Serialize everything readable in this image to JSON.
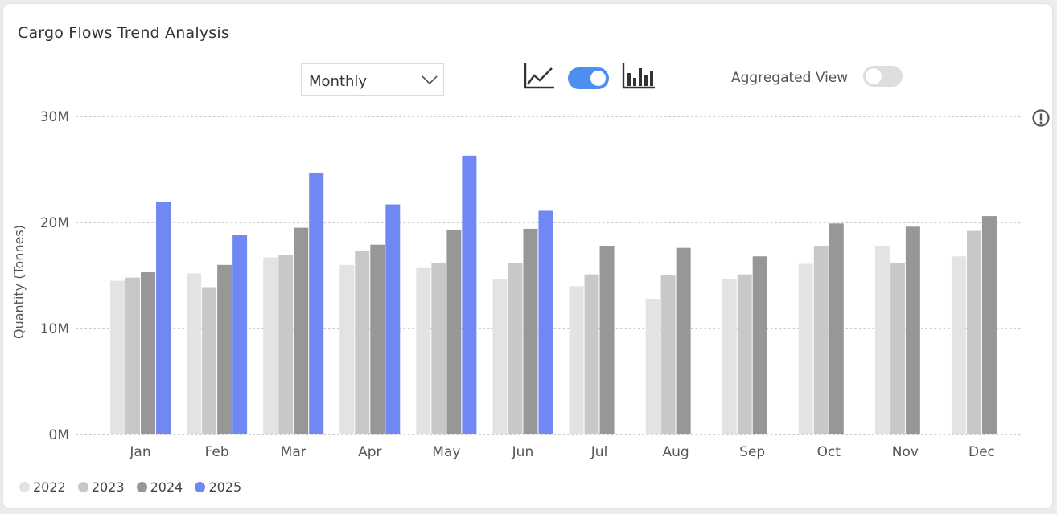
{
  "header": {
    "title": "Cargo Flows Trend Analysis"
  },
  "controls": {
    "period_dropdown": {
      "value": "Monthly"
    },
    "chart_type_toggle": {
      "on": true
    },
    "aggregated_view": {
      "label": "Aggregated View",
      "on": false
    }
  },
  "colors": {
    "accent": "#4d8ef0",
    "series_2025": "#7088f3"
  },
  "icons": [
    "line-chart-icon",
    "bar-chart-icon",
    "chevron-down-icon",
    "info-icon"
  ],
  "chart_data": {
    "type": "bar",
    "ylabel": "Quantity (Tonnes)",
    "xlabel": "",
    "ylim": [
      0,
      30000000
    ],
    "yticks": [
      {
        "value": 0,
        "label": "0M"
      },
      {
        "value": 10000000,
        "label": "10M"
      },
      {
        "value": 20000000,
        "label": "20M"
      },
      {
        "value": 30000000,
        "label": "30M"
      }
    ],
    "grid": true,
    "legend_position": "bottom-left",
    "categories": [
      "Jan",
      "Feb",
      "Mar",
      "Apr",
      "May",
      "Jun",
      "Jul",
      "Aug",
      "Sep",
      "Oct",
      "Nov",
      "Dec"
    ],
    "series": [
      {
        "name": "2022",
        "color": "#e3e3e3",
        "values": [
          14500000,
          15200000,
          16700000,
          16000000,
          15700000,
          14700000,
          14000000,
          12800000,
          14700000,
          16100000,
          17800000,
          16800000
        ]
      },
      {
        "name": "2023",
        "color": "#c8c8c8",
        "values": [
          14800000,
          13900000,
          16900000,
          17300000,
          16200000,
          16200000,
          15100000,
          15000000,
          15100000,
          17800000,
          16200000,
          19200000
        ]
      },
      {
        "name": "2024",
        "color": "#979797",
        "values": [
          15300000,
          16000000,
          19500000,
          17900000,
          19300000,
          19400000,
          17800000,
          17600000,
          16800000,
          19900000,
          19600000,
          20600000
        ]
      },
      {
        "name": "2025",
        "color": "#7088f3",
        "values": [
          21900000,
          18800000,
          24700000,
          21700000,
          26300000,
          21100000,
          null,
          null,
          null,
          null,
          null,
          null
        ]
      }
    ]
  }
}
